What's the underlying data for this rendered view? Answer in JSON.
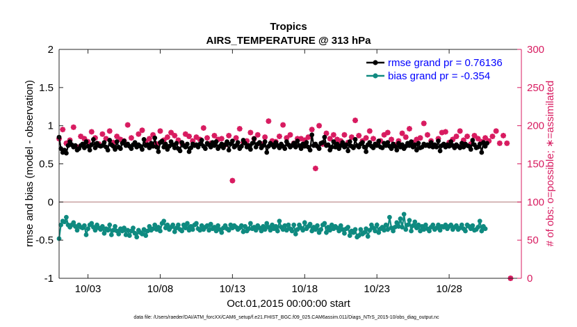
{
  "chart_data": {
    "type": "line",
    "title": "Tropics",
    "subtitle": "AIRS_TEMPERATURE @ 313 hPa",
    "xlabel": "Oct.01,2015 00:00:00 start",
    "ylabel": "rmse and bias (model - observation)",
    "ylabel_right": "# of obs: o=possible; ∗=assimilated",
    "xlim": [
      1,
      33
    ],
    "ylim": [
      -1,
      2
    ],
    "ylim_right": [
      0,
      300
    ],
    "xticks": [
      {
        "value": 3,
        "label": "10/03"
      },
      {
        "value": 8,
        "label": "10/08"
      },
      {
        "value": 13,
        "label": "10/13"
      },
      {
        "value": 18,
        "label": "10/18"
      },
      {
        "value": 23,
        "label": "10/23"
      },
      {
        "value": 28,
        "label": "10/28"
      }
    ],
    "yticks": [
      {
        "value": -1,
        "label": "-1"
      },
      {
        "value": -0.5,
        "label": "-0.5"
      },
      {
        "value": 0,
        "label": "0"
      },
      {
        "value": 0.5,
        "label": "0.5"
      },
      {
        "value": 1,
        "label": "1"
      },
      {
        "value": 1.5,
        "label": "1.5"
      },
      {
        "value": 2,
        "label": "2"
      }
    ],
    "yticks_right": [
      {
        "value": 0,
        "label": "0"
      },
      {
        "value": 50,
        "label": "50"
      },
      {
        "value": 100,
        "label": "100"
      },
      {
        "value": 150,
        "label": "150"
      },
      {
        "value": 200,
        "label": "200"
      },
      {
        "value": 250,
        "label": "250"
      },
      {
        "value": 300,
        "label": "300"
      }
    ],
    "zero_line": 0,
    "legend": {
      "position": "top-right",
      "entries": [
        {
          "series": "rmse",
          "label": "rmse grand pr = 0.76136"
        },
        {
          "series": "bias",
          "label": "bias grand pr = -0.354"
        }
      ]
    },
    "series": [
      {
        "name": "rmse",
        "axis": "left",
        "color": "#000000",
        "marker": "circle",
        "start": 1.0,
        "step": 0.125,
        "values": [
          0.85,
          0.7,
          0.65,
          0.68,
          0.64,
          0.74,
          0.79,
          0.75,
          0.72,
          0.74,
          0.68,
          0.7,
          0.74,
          0.76,
          0.71,
          0.79,
          0.73,
          0.68,
          0.75,
          0.82,
          0.71,
          0.77,
          0.74,
          0.73,
          0.74,
          0.78,
          0.72,
          0.68,
          0.81,
          0.75,
          0.73,
          0.69,
          0.79,
          0.72,
          0.7,
          0.77,
          0.8,
          0.74,
          0.76,
          0.73,
          0.7,
          0.75,
          0.78,
          0.72,
          0.75,
          0.73,
          0.69,
          0.82,
          0.74,
          0.75,
          0.71,
          0.77,
          0.73,
          0.84,
          0.72,
          0.66,
          0.78,
          0.8,
          0.72,
          0.76,
          0.69,
          0.73,
          0.79,
          0.75,
          0.71,
          0.77,
          0.7,
          0.67,
          0.78,
          0.74,
          0.72,
          0.76,
          0.66,
          0.71,
          0.76,
          0.74,
          0.75,
          0.72,
          0.76,
          0.81,
          0.73,
          0.7,
          0.77,
          0.75,
          0.72,
          0.78,
          0.74,
          0.79,
          0.7,
          0.73,
          0.76,
          0.71,
          0.75,
          0.79,
          0.68,
          0.76,
          0.8,
          0.72,
          0.74,
          0.78,
          0.7,
          0.73,
          0.81,
          0.77,
          0.72,
          0.74,
          0.69,
          0.77,
          0.83,
          0.72,
          0.76,
          0.78,
          0.71,
          0.74,
          0.79,
          0.65,
          0.73,
          0.77,
          0.75,
          0.72,
          0.78,
          0.74,
          0.71,
          0.76,
          0.73,
          0.7,
          0.79,
          0.75,
          0.72,
          0.74,
          0.77,
          0.72,
          0.8,
          0.74,
          0.7,
          0.76,
          0.73,
          0.78,
          0.72,
          0.68,
          0.88,
          0.74,
          0.76,
          0.73,
          0.7,
          0.77,
          0.78,
          0.85,
          0.74,
          0.75,
          0.68,
          0.72,
          0.79,
          0.72,
          0.76,
          0.7,
          0.74,
          0.78,
          0.72,
          0.75,
          0.67,
          0.79,
          0.73,
          0.71,
          0.82,
          0.74,
          0.72,
          0.76,
          0.78,
          0.72,
          0.66,
          0.75,
          0.78,
          0.73,
          0.71,
          0.76,
          0.74,
          0.8,
          0.72,
          0.71,
          0.77,
          0.74,
          0.78,
          0.73,
          0.7,
          0.76,
          0.73,
          0.68,
          0.77,
          0.72,
          0.75,
          0.7,
          0.73,
          0.77,
          0.74,
          0.79,
          0.72,
          0.75,
          0.68,
          0.77,
          0.71,
          0.72,
          0.76,
          0.74,
          0.75,
          0.73,
          0.78,
          0.72,
          0.75,
          0.72,
          0.8,
          0.67,
          0.74,
          0.76,
          0.72,
          0.75,
          0.73,
          0.79,
          0.74,
          0.71,
          0.75,
          0.73,
          0.71,
          0.77,
          0.72,
          0.76,
          0.74,
          0.73,
          0.69,
          0.81,
          0.75,
          0.71,
          0.72,
          0.76,
          0.65,
          0.78,
          0.73,
          0.77
        ]
      },
      {
        "name": "bias",
        "axis": "left",
        "color": "#0f8a80",
        "marker": "circle",
        "start": 1.0,
        "step": 0.125,
        "values": [
          -0.48,
          -0.3,
          -0.25,
          -0.26,
          -0.2,
          -0.3,
          -0.33,
          -0.3,
          -0.27,
          -0.32,
          -0.37,
          -0.3,
          -0.33,
          -0.34,
          -0.31,
          -0.43,
          -0.35,
          -0.3,
          -0.28,
          -0.33,
          -0.37,
          -0.3,
          -0.34,
          -0.36,
          -0.32,
          -0.41,
          -0.35,
          -0.37,
          -0.3,
          -0.43,
          -0.37,
          -0.32,
          -0.38,
          -0.42,
          -0.35,
          -0.38,
          -0.34,
          -0.43,
          -0.37,
          -0.44,
          -0.38,
          -0.34,
          -0.41,
          -0.46,
          -0.37,
          -0.4,
          -0.42,
          -0.36,
          -0.44,
          -0.38,
          -0.32,
          -0.37,
          -0.35,
          -0.3,
          -0.36,
          -0.33,
          -0.38,
          -0.28,
          -0.25,
          -0.34,
          -0.3,
          -0.36,
          -0.33,
          -0.3,
          -0.39,
          -0.34,
          -0.3,
          -0.36,
          -0.38,
          -0.3,
          -0.34,
          -0.28,
          -0.37,
          -0.32,
          -0.36,
          -0.3,
          -0.28,
          -0.35,
          -0.37,
          -0.31,
          -0.36,
          -0.33,
          -0.31,
          -0.37,
          -0.29,
          -0.35,
          -0.33,
          -0.38,
          -0.31,
          -0.36,
          -0.4,
          -0.34,
          -0.31,
          -0.35,
          -0.37,
          -0.3,
          -0.34,
          -0.31,
          -0.33,
          -0.36,
          -0.34,
          -0.31,
          -0.39,
          -0.32,
          -0.38,
          -0.35,
          -0.28,
          -0.35,
          -0.33,
          -0.37,
          -0.31,
          -0.34,
          -0.38,
          -0.32,
          -0.36,
          -0.28,
          -0.33,
          -0.37,
          -0.3,
          -0.35,
          -0.32,
          -0.38,
          -0.25,
          -0.33,
          -0.36,
          -0.31,
          -0.37,
          -0.3,
          -0.35,
          -0.38,
          -0.3,
          -0.42,
          -0.36,
          -0.3,
          -0.34,
          -0.37,
          -0.27,
          -0.35,
          -0.32,
          -0.29,
          -0.38,
          -0.33,
          -0.36,
          -0.31,
          -0.4,
          -0.36,
          -0.3,
          -0.28,
          -0.4,
          -0.33,
          -0.37,
          -0.3,
          -0.35,
          -0.32,
          -0.34,
          -0.38,
          -0.31,
          -0.36,
          -0.41,
          -0.35,
          -0.33,
          -0.44,
          -0.38,
          -0.4,
          -0.36,
          -0.46,
          -0.44,
          -0.36,
          -0.42,
          -0.4,
          -0.35,
          -0.45,
          -0.37,
          -0.3,
          -0.34,
          -0.38,
          -0.3,
          -0.4,
          -0.35,
          -0.33,
          -0.37,
          -0.3,
          -0.36,
          -0.2,
          -0.34,
          -0.38,
          -0.33,
          -0.27,
          -0.32,
          -0.22,
          -0.33,
          -0.16,
          -0.36,
          -0.3,
          -0.24,
          -0.38,
          -0.31,
          -0.26,
          -0.34,
          -0.3,
          -0.38,
          -0.32,
          -0.36,
          -0.3,
          -0.35,
          -0.38,
          -0.33,
          -0.3,
          -0.36,
          -0.34,
          -0.3,
          -0.37,
          -0.32,
          -0.33,
          -0.3,
          -0.35,
          -0.32,
          -0.3,
          -0.36,
          -0.33,
          -0.31,
          -0.36,
          -0.34,
          -0.3,
          -0.35,
          -0.38,
          -0.3,
          -0.32,
          -0.35,
          -0.31,
          -0.37,
          -0.36,
          -0.33,
          -0.25,
          -0.38,
          -0.32,
          -0.35
        ]
      },
      {
        "name": "obs_possible",
        "axis": "right",
        "color": "#d81b60",
        "marker": "o",
        "start": 1.0,
        "step": 0.25,
        "values": [
          183,
          195,
          177,
          181,
          198,
          172,
          186,
          183,
          179,
          192,
          184,
          176,
          189,
          183,
          193,
          178,
          186,
          182,
          180,
          201,
          184,
          176,
          189,
          194,
          179,
          183,
          188,
          176,
          193,
          181,
          185,
          191,
          187,
          181,
          177,
          189,
          186,
          180,
          185,
          182,
          197,
          184,
          177,
          187,
          182,
          183,
          175,
          187,
          128,
          184,
          196,
          178,
          180,
          191,
          183,
          188,
          176,
          185,
          206,
          180,
          179,
          186,
          201,
          184,
          188,
          177,
          183,
          183,
          181,
          185,
          195,
          144,
          200,
          176,
          190,
          183,
          188,
          182,
          180,
          188,
          178,
          185,
          207,
          187,
          180,
          184,
          193,
          183,
          176,
          180,
          188,
          191,
          182,
          175,
          180,
          190,
          185,
          196,
          178,
          182,
          184,
          203,
          188,
          180,
          174,
          183,
          191,
          192,
          178,
          182,
          186,
          193,
          181,
          186,
          176,
          187,
          183,
          179,
          184,
          180,
          186,
          193,
          177,
          187,
          177,
          0
        ]
      },
      {
        "name": "obs_assimilated",
        "axis": "right",
        "color": "#d81b60",
        "marker": "*",
        "start": 1.0,
        "step": 0.25,
        "values": [
          183,
          195,
          177,
          181,
          198,
          172,
          186,
          183,
          179,
          192,
          184,
          176,
          189,
          183,
          193,
          178,
          186,
          182,
          180,
          201,
          184,
          176,
          189,
          194,
          179,
          183,
          188,
          176,
          193,
          181,
          185,
          191,
          187,
          181,
          177,
          189,
          186,
          180,
          185,
          182,
          197,
          184,
          177,
          187,
          182,
          183,
          175,
          187,
          128,
          184,
          196,
          178,
          180,
          191,
          183,
          188,
          176,
          185,
          206,
          180,
          179,
          186,
          201,
          184,
          188,
          177,
          183,
          183,
          181,
          185,
          195,
          144,
          200,
          176,
          190,
          183,
          188,
          182,
          180,
          188,
          178,
          185,
          207,
          187,
          180,
          184,
          193,
          183,
          176,
          180,
          188,
          191,
          182,
          175,
          180,
          190,
          185,
          196,
          178,
          182,
          184,
          203,
          188,
          180,
          174,
          183,
          191,
          192,
          178,
          182,
          186,
          193,
          181,
          186,
          176,
          187,
          183,
          179,
          184,
          180,
          186,
          193,
          177,
          187,
          177,
          0
        ]
      }
    ],
    "footnote": "data file: /Users/raeder/DAI/ATM_forcXX/CAM6_setup/f.e21.FHIST_BGC.f09_025.CAM6assim.011/Diags_NTrS_2015-10/obs_diag_output.nc"
  }
}
